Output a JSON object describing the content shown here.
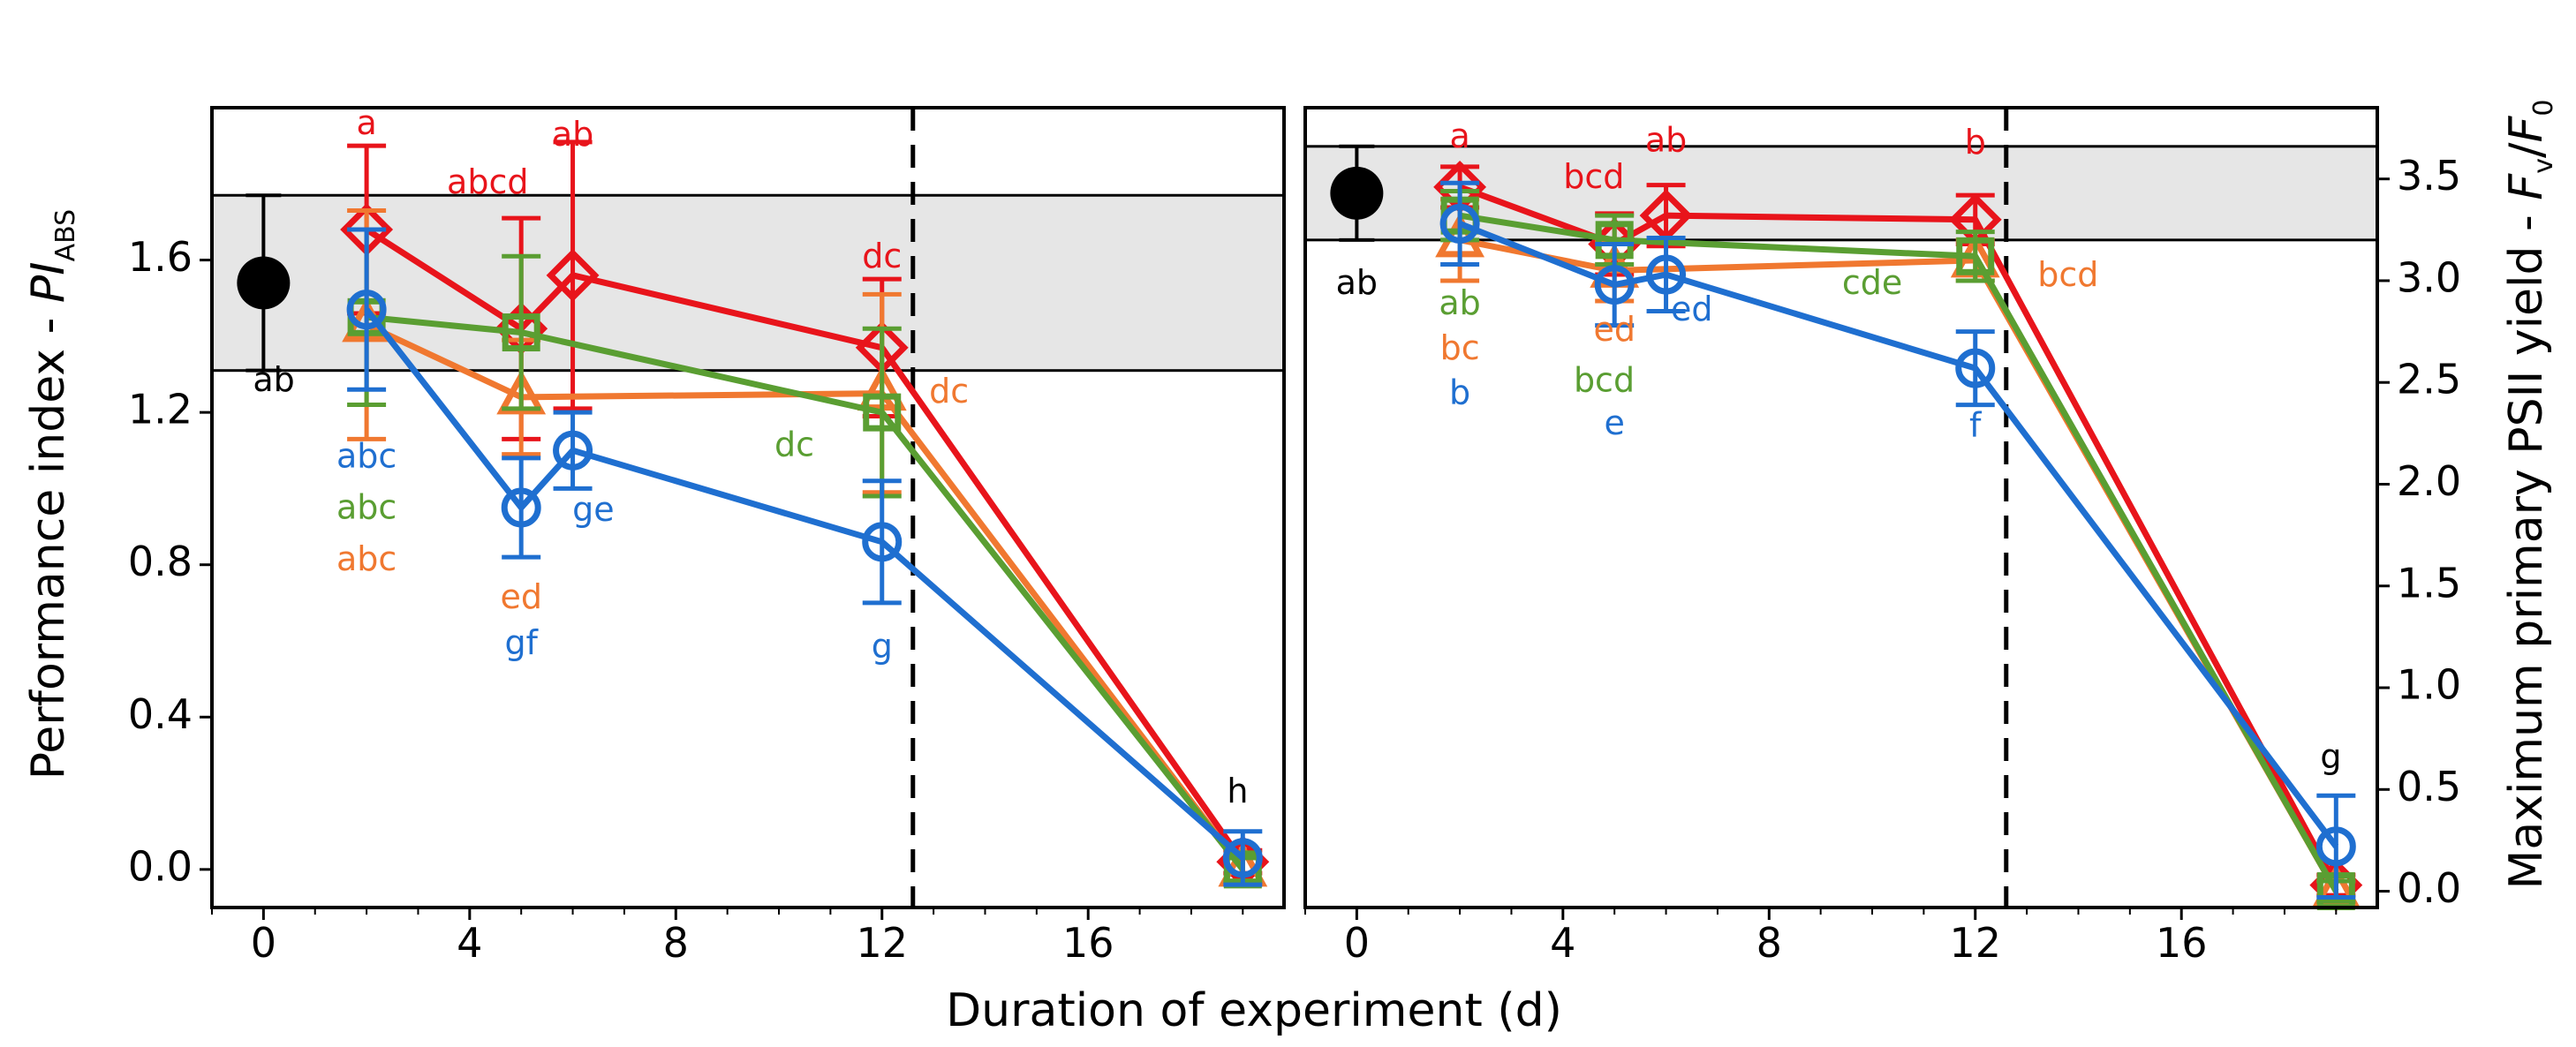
{
  "figure": {
    "xlabel": "Duration of experiment (d)",
    "colors": {
      "red": "#e8141b",
      "orange": "#f07830",
      "green": "#5a9e32",
      "blue": "#1f6fd0",
      "black": "#000000",
      "band": "#e6e6e6"
    }
  },
  "chart_data": [
    {
      "type": "line",
      "panel": "left",
      "ylabel": {
        "main": "Performance index - ",
        "var": "PI",
        "sub": "ABS"
      },
      "xlim": [
        -1,
        19.8
      ],
      "ylim": [
        -0.1,
        2.0
      ],
      "xticks": [
        0,
        4,
        8,
        12,
        16
      ],
      "yticks": [
        0.0,
        0.4,
        0.8,
        1.2,
        1.6
      ],
      "ytick_labels": [
        "0.0",
        "0.4",
        "0.8",
        "1.2",
        "1.6"
      ],
      "vline_x": 12.6,
      "control_band": [
        1.31,
        1.77
      ],
      "control": {
        "x": 0,
        "y": 1.54,
        "err": 0.23,
        "label": "ab",
        "label_color": "black"
      },
      "series": [
        {
          "name": "red",
          "color": "red",
          "marker": "diamond",
          "x": [
            2,
            5,
            6,
            12,
            19
          ],
          "y": [
            1.68,
            1.42,
            1.56,
            1.37,
            0.02
          ],
          "err": [
            0.22,
            0.29,
            0.35,
            0.18,
            0.03
          ]
        },
        {
          "name": "orange",
          "color": "orange",
          "marker": "triangle",
          "x": [
            2,
            5,
            12,
            19
          ],
          "y": [
            1.43,
            1.24,
            1.25,
            0.0
          ],
          "err": [
            0.3,
            0.15,
            0.26,
            0.03
          ]
        },
        {
          "name": "green",
          "color": "green",
          "marker": "square",
          "x": [
            2,
            5,
            12,
            19
          ],
          "y": [
            1.45,
            1.41,
            1.2,
            0.0
          ],
          "err": [
            0.23,
            0.2,
            0.22,
            0.03
          ]
        },
        {
          "name": "blue",
          "color": "blue",
          "marker": "circle",
          "x": [
            2,
            5,
            6,
            12,
            19
          ],
          "y": [
            1.47,
            0.95,
            1.1,
            0.86,
            0.03
          ],
          "err": [
            0.21,
            0.13,
            0.1,
            0.16,
            0.07
          ]
        }
      ],
      "annotations": [
        {
          "text": "a",
          "color": "red",
          "x": 2.0,
          "y": 1.955
        },
        {
          "text": "abcd",
          "color": "red",
          "x": 4.35,
          "y": 1.8
        },
        {
          "text": "ab",
          "color": "red",
          "x": 6.0,
          "y": 1.925
        },
        {
          "text": "dc",
          "color": "red",
          "x": 12.0,
          "y": 1.605
        },
        {
          "text": "ab",
          "color": "black",
          "x": 0.2,
          "y": 1.28
        },
        {
          "text": "abc",
          "color": "blue",
          "x": 2.0,
          "y": 1.08
        },
        {
          "text": "abc",
          "color": "green",
          "x": 2.0,
          "y": 0.945
        },
        {
          "text": "abc",
          "color": "orange",
          "x": 2.0,
          "y": 0.81
        },
        {
          "text": "ed",
          "color": "orange",
          "x": 5.0,
          "y": 0.71
        },
        {
          "text": "gf",
          "color": "blue",
          "x": 5.0,
          "y": 0.59
        },
        {
          "text": "ge",
          "color": "blue",
          "x": 6.4,
          "y": 0.94
        },
        {
          "text": "dc",
          "color": "green",
          "x": 10.3,
          "y": 1.11
        },
        {
          "text": "dc",
          "color": "orange",
          "x": 13.3,
          "y": 1.25
        },
        {
          "text": "g",
          "color": "blue",
          "x": 12.0,
          "y": 0.58
        },
        {
          "text": "h",
          "color": "black",
          "x": 18.9,
          "y": 0.2
        }
      ]
    },
    {
      "type": "line",
      "panel": "right",
      "ylabel": {
        "main": "Maximum primary PSII yield - ",
        "var": "F",
        "sub1": "v",
        "slash": "/",
        "var2": "F",
        "sub2": "0"
      },
      "xlim": [
        -1,
        19.8
      ],
      "ylim": [
        -0.08,
        3.85
      ],
      "xticks": [
        0,
        4,
        8,
        12,
        16
      ],
      "yticks": [
        0.0,
        0.5,
        1.0,
        1.5,
        2.0,
        2.5,
        3.0,
        3.5
      ],
      "ytick_labels": [
        "0.0",
        "0.5",
        "1.0",
        "1.5",
        "2.0",
        "2.5",
        "3.0",
        "3.5"
      ],
      "vline_x": 12.6,
      "control_band": [
        3.2,
        3.66
      ],
      "control": {
        "x": 0,
        "y": 3.43,
        "err": 0.23,
        "label": "ab",
        "label_color": "black"
      },
      "series": [
        {
          "name": "red",
          "color": "red",
          "marker": "diamond",
          "x": [
            2,
            5,
            6,
            12,
            19
          ],
          "y": [
            3.46,
            3.18,
            3.32,
            3.3,
            0.03
          ],
          "err": [
            0.1,
            0.15,
            0.15,
            0.12,
            0.05
          ]
        },
        {
          "name": "orange",
          "color": "orange",
          "marker": "triangle",
          "x": [
            2,
            5,
            12,
            19
          ],
          "y": [
            3.2,
            3.05,
            3.1,
            0.0
          ],
          "err": [
            0.2,
            0.15,
            0.1,
            0.05
          ]
        },
        {
          "name": "green",
          "color": "green",
          "marker": "square",
          "x": [
            2,
            5,
            12,
            19
          ],
          "y": [
            3.32,
            3.2,
            3.12,
            0.0
          ],
          "err": [
            0.12,
            0.12,
            0.12,
            0.05
          ]
        },
        {
          "name": "blue",
          "color": "blue",
          "marker": "circle",
          "x": [
            2,
            5,
            6,
            12,
            19
          ],
          "y": [
            3.28,
            2.98,
            3.03,
            2.57,
            0.22
          ],
          "err": [
            0.2,
            0.2,
            0.18,
            0.18,
            0.25
          ]
        }
      ],
      "annotations": [
        {
          "text": "a",
          "color": "red",
          "x": 2.0,
          "y": 3.7
        },
        {
          "text": "bcd",
          "color": "red",
          "x": 4.6,
          "y": 3.5
        },
        {
          "text": "ab",
          "color": "red",
          "x": 6.0,
          "y": 3.68
        },
        {
          "text": "b",
          "color": "red",
          "x": 12.0,
          "y": 3.67
        },
        {
          "text": "ab",
          "color": "black",
          "x": 0.0,
          "y": 2.98
        },
        {
          "text": "ab",
          "color": "green",
          "x": 2.0,
          "y": 2.88
        },
        {
          "text": "bc",
          "color": "orange",
          "x": 2.0,
          "y": 2.66
        },
        {
          "text": "b",
          "color": "blue",
          "x": 2.0,
          "y": 2.44
        },
        {
          "text": "ed",
          "color": "orange",
          "x": 5.0,
          "y": 2.75
        },
        {
          "text": "ed",
          "color": "blue",
          "x": 6.5,
          "y": 2.85
        },
        {
          "text": "bcd",
          "color": "green",
          "x": 4.8,
          "y": 2.5
        },
        {
          "text": "e",
          "color": "blue",
          "x": 5.0,
          "y": 2.29
        },
        {
          "text": "cde",
          "color": "green",
          "x": 10.0,
          "y": 2.98
        },
        {
          "text": "bcd",
          "color": "orange",
          "x": 13.8,
          "y": 3.02
        },
        {
          "text": "f",
          "color": "blue",
          "x": 12.0,
          "y": 2.28
        },
        {
          "text": "g",
          "color": "black",
          "x": 18.9,
          "y": 0.65
        }
      ]
    }
  ]
}
